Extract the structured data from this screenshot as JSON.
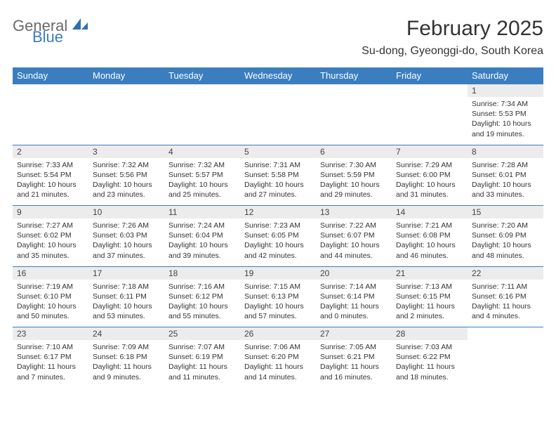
{
  "logo": {
    "general": "General",
    "blue": "Blue"
  },
  "header": {
    "month_title": "February 2025",
    "location": "Su-dong, Gyeonggi-do, South Korea"
  },
  "colors": {
    "header_bg": "#3a7ebf",
    "header_text": "#ffffff",
    "dayrow_bg": "#ececec",
    "dayrow_border": "#3a7ebf",
    "text": "#333333",
    "logo_gray": "#6a6a6a",
    "logo_blue": "#3a7ebf",
    "page_bg": "#ffffff"
  },
  "day_names": [
    "Sunday",
    "Monday",
    "Tuesday",
    "Wednesday",
    "Thursday",
    "Friday",
    "Saturday"
  ],
  "weeks": [
    [
      null,
      null,
      null,
      null,
      null,
      null,
      {
        "n": "1",
        "sunrise": "Sunrise: 7:34 AM",
        "sunset": "Sunset: 5:53 PM",
        "daylight": "Daylight: 10 hours and 19 minutes."
      }
    ],
    [
      {
        "n": "2",
        "sunrise": "Sunrise: 7:33 AM",
        "sunset": "Sunset: 5:54 PM",
        "daylight": "Daylight: 10 hours and 21 minutes."
      },
      {
        "n": "3",
        "sunrise": "Sunrise: 7:32 AM",
        "sunset": "Sunset: 5:56 PM",
        "daylight": "Daylight: 10 hours and 23 minutes."
      },
      {
        "n": "4",
        "sunrise": "Sunrise: 7:32 AM",
        "sunset": "Sunset: 5:57 PM",
        "daylight": "Daylight: 10 hours and 25 minutes."
      },
      {
        "n": "5",
        "sunrise": "Sunrise: 7:31 AM",
        "sunset": "Sunset: 5:58 PM",
        "daylight": "Daylight: 10 hours and 27 minutes."
      },
      {
        "n": "6",
        "sunrise": "Sunrise: 7:30 AM",
        "sunset": "Sunset: 5:59 PM",
        "daylight": "Daylight: 10 hours and 29 minutes."
      },
      {
        "n": "7",
        "sunrise": "Sunrise: 7:29 AM",
        "sunset": "Sunset: 6:00 PM",
        "daylight": "Daylight: 10 hours and 31 minutes."
      },
      {
        "n": "8",
        "sunrise": "Sunrise: 7:28 AM",
        "sunset": "Sunset: 6:01 PM",
        "daylight": "Daylight: 10 hours and 33 minutes."
      }
    ],
    [
      {
        "n": "9",
        "sunrise": "Sunrise: 7:27 AM",
        "sunset": "Sunset: 6:02 PM",
        "daylight": "Daylight: 10 hours and 35 minutes."
      },
      {
        "n": "10",
        "sunrise": "Sunrise: 7:26 AM",
        "sunset": "Sunset: 6:03 PM",
        "daylight": "Daylight: 10 hours and 37 minutes."
      },
      {
        "n": "11",
        "sunrise": "Sunrise: 7:24 AM",
        "sunset": "Sunset: 6:04 PM",
        "daylight": "Daylight: 10 hours and 39 minutes."
      },
      {
        "n": "12",
        "sunrise": "Sunrise: 7:23 AM",
        "sunset": "Sunset: 6:05 PM",
        "daylight": "Daylight: 10 hours and 42 minutes."
      },
      {
        "n": "13",
        "sunrise": "Sunrise: 7:22 AM",
        "sunset": "Sunset: 6:07 PM",
        "daylight": "Daylight: 10 hours and 44 minutes."
      },
      {
        "n": "14",
        "sunrise": "Sunrise: 7:21 AM",
        "sunset": "Sunset: 6:08 PM",
        "daylight": "Daylight: 10 hours and 46 minutes."
      },
      {
        "n": "15",
        "sunrise": "Sunrise: 7:20 AM",
        "sunset": "Sunset: 6:09 PM",
        "daylight": "Daylight: 10 hours and 48 minutes."
      }
    ],
    [
      {
        "n": "16",
        "sunrise": "Sunrise: 7:19 AM",
        "sunset": "Sunset: 6:10 PM",
        "daylight": "Daylight: 10 hours and 50 minutes."
      },
      {
        "n": "17",
        "sunrise": "Sunrise: 7:18 AM",
        "sunset": "Sunset: 6:11 PM",
        "daylight": "Daylight: 10 hours and 53 minutes."
      },
      {
        "n": "18",
        "sunrise": "Sunrise: 7:16 AM",
        "sunset": "Sunset: 6:12 PM",
        "daylight": "Daylight: 10 hours and 55 minutes."
      },
      {
        "n": "19",
        "sunrise": "Sunrise: 7:15 AM",
        "sunset": "Sunset: 6:13 PM",
        "daylight": "Daylight: 10 hours and 57 minutes."
      },
      {
        "n": "20",
        "sunrise": "Sunrise: 7:14 AM",
        "sunset": "Sunset: 6:14 PM",
        "daylight": "Daylight: 11 hours and 0 minutes."
      },
      {
        "n": "21",
        "sunrise": "Sunrise: 7:13 AM",
        "sunset": "Sunset: 6:15 PM",
        "daylight": "Daylight: 11 hours and 2 minutes."
      },
      {
        "n": "22",
        "sunrise": "Sunrise: 7:11 AM",
        "sunset": "Sunset: 6:16 PM",
        "daylight": "Daylight: 11 hours and 4 minutes."
      }
    ],
    [
      {
        "n": "23",
        "sunrise": "Sunrise: 7:10 AM",
        "sunset": "Sunset: 6:17 PM",
        "daylight": "Daylight: 11 hours and 7 minutes."
      },
      {
        "n": "24",
        "sunrise": "Sunrise: 7:09 AM",
        "sunset": "Sunset: 6:18 PM",
        "daylight": "Daylight: 11 hours and 9 minutes."
      },
      {
        "n": "25",
        "sunrise": "Sunrise: 7:07 AM",
        "sunset": "Sunset: 6:19 PM",
        "daylight": "Daylight: 11 hours and 11 minutes."
      },
      {
        "n": "26",
        "sunrise": "Sunrise: 7:06 AM",
        "sunset": "Sunset: 6:20 PM",
        "daylight": "Daylight: 11 hours and 14 minutes."
      },
      {
        "n": "27",
        "sunrise": "Sunrise: 7:05 AM",
        "sunset": "Sunset: 6:21 PM",
        "daylight": "Daylight: 11 hours and 16 minutes."
      },
      {
        "n": "28",
        "sunrise": "Sunrise: 7:03 AM",
        "sunset": "Sunset: 6:22 PM",
        "daylight": "Daylight: 11 hours and 18 minutes."
      },
      null
    ]
  ]
}
